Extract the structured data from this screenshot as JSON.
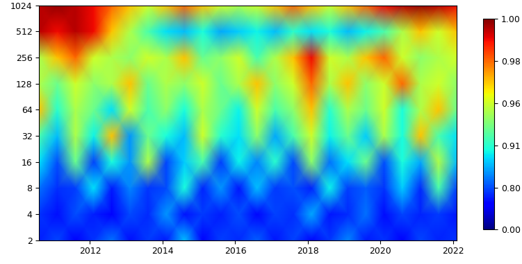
{
  "chart_data": {
    "type": "heatmap",
    "x": [
      2010.6,
      2011.1,
      2011.6,
      2012.1,
      2012.6,
      2013.1,
      2013.6,
      2014.1,
      2014.6,
      2015.1,
      2015.6,
      2016.1,
      2016.6,
      2017.1,
      2017.6,
      2018.1,
      2018.6,
      2019.1,
      2019.6,
      2020.1,
      2020.6,
      2021.1,
      2021.6,
      2022.1
    ],
    "y": [
      2,
      4,
      8,
      16,
      32,
      64,
      128,
      256,
      512,
      1024
    ],
    "cells": [
      [
        0.62,
        0.78,
        0.45,
        0.7,
        0.82,
        0.55,
        0.72,
        0.6,
        0.86,
        0.5,
        0.74,
        0.66,
        0.81,
        0.58,
        0.76,
        0.52,
        0.71,
        0.83,
        0.6,
        0.69,
        0.48,
        0.77,
        0.64,
        0.7
      ],
      [
        0.7,
        0.55,
        0.8,
        0.62,
        0.48,
        0.79,
        0.66,
        0.84,
        0.57,
        0.73,
        0.61,
        0.8,
        0.52,
        0.75,
        0.68,
        0.85,
        0.59,
        0.67,
        0.82,
        0.54,
        0.78,
        0.63,
        0.72,
        0.58
      ],
      [
        0.82,
        0.68,
        0.74,
        0.88,
        0.6,
        0.83,
        0.71,
        0.79,
        0.9,
        0.65,
        0.84,
        0.58,
        0.86,
        0.72,
        0.8,
        0.63,
        0.89,
        0.74,
        0.81,
        0.7,
        0.87,
        0.66,
        0.92,
        0.75
      ],
      [
        0.88,
        0.8,
        0.93,
        0.76,
        0.9,
        0.84,
        0.95,
        0.78,
        0.87,
        0.92,
        0.74,
        0.89,
        0.83,
        0.91,
        0.79,
        0.94,
        0.82,
        0.88,
        0.93,
        0.8,
        0.9,
        0.85,
        0.95,
        0.86
      ],
      [
        0.92,
        0.86,
        0.95,
        0.89,
        0.97,
        0.84,
        0.93,
        0.9,
        0.86,
        0.96,
        0.91,
        0.88,
        0.94,
        0.85,
        0.92,
        0.96,
        0.89,
        0.93,
        0.87,
        0.95,
        0.9,
        0.97,
        0.92,
        0.88
      ],
      [
        0.97,
        0.91,
        0.95,
        0.93,
        0.88,
        0.96,
        0.92,
        0.94,
        0.9,
        0.95,
        0.93,
        0.89,
        0.96,
        0.92,
        0.94,
        0.97,
        0.91,
        0.95,
        0.93,
        0.96,
        0.9,
        0.95,
        0.97,
        0.93
      ],
      [
        0.95,
        0.93,
        0.96,
        0.94,
        0.95,
        0.97,
        0.93,
        0.95,
        0.94,
        0.96,
        0.93,
        0.95,
        0.97,
        0.94,
        0.96,
        0.98,
        0.95,
        0.97,
        0.94,
        0.96,
        0.98,
        0.95,
        0.96,
        0.94
      ],
      [
        0.95,
        0.97,
        0.98,
        0.96,
        0.95,
        0.94,
        0.96,
        0.95,
        0.97,
        0.93,
        0.94,
        0.96,
        0.92,
        0.95,
        0.97,
        0.99,
        0.96,
        0.95,
        0.97,
        0.98,
        0.96,
        0.94,
        0.95,
        0.96
      ],
      [
        0.995,
        0.99,
        0.995,
        0.99,
        0.97,
        0.95,
        0.92,
        0.88,
        0.86,
        0.9,
        0.85,
        0.87,
        0.89,
        0.86,
        0.91,
        0.88,
        0.9,
        0.86,
        0.89,
        0.92,
        0.95,
        0.97,
        0.96,
        0.97
      ],
      [
        0.995,
        0.998,
        0.995,
        0.99,
        0.98,
        0.97,
        0.96,
        0.97,
        0.98,
        0.97,
        0.96,
        0.95,
        0.96,
        0.97,
        0.98,
        0.97,
        0.96,
        0.97,
        0.98,
        0.99,
        0.995,
        0.998,
        0.995,
        0.99
      ]
    ],
    "xlim": [
      2010.6,
      2022.1
    ],
    "xticks": [
      2012,
      2014,
      2016,
      2018,
      2020,
      2022
    ],
    "ylim": [
      2,
      1024
    ],
    "yticks": [
      2,
      4,
      8,
      16,
      32,
      64,
      128,
      256,
      512,
      1024
    ],
    "log": "y",
    "colorbar_range": [
      0,
      1
    ],
    "colorbar_ticks": [
      {
        "value": 0,
        "label": "0.00"
      },
      {
        "value": 0.8,
        "label": "0.80"
      },
      {
        "value": 0.91,
        "label": "0.91"
      },
      {
        "value": 0.96,
        "label": "0.96"
      },
      {
        "value": 0.98,
        "label": "0.98"
      },
      {
        "value": 1,
        "label": "1.00"
      }
    ]
  }
}
